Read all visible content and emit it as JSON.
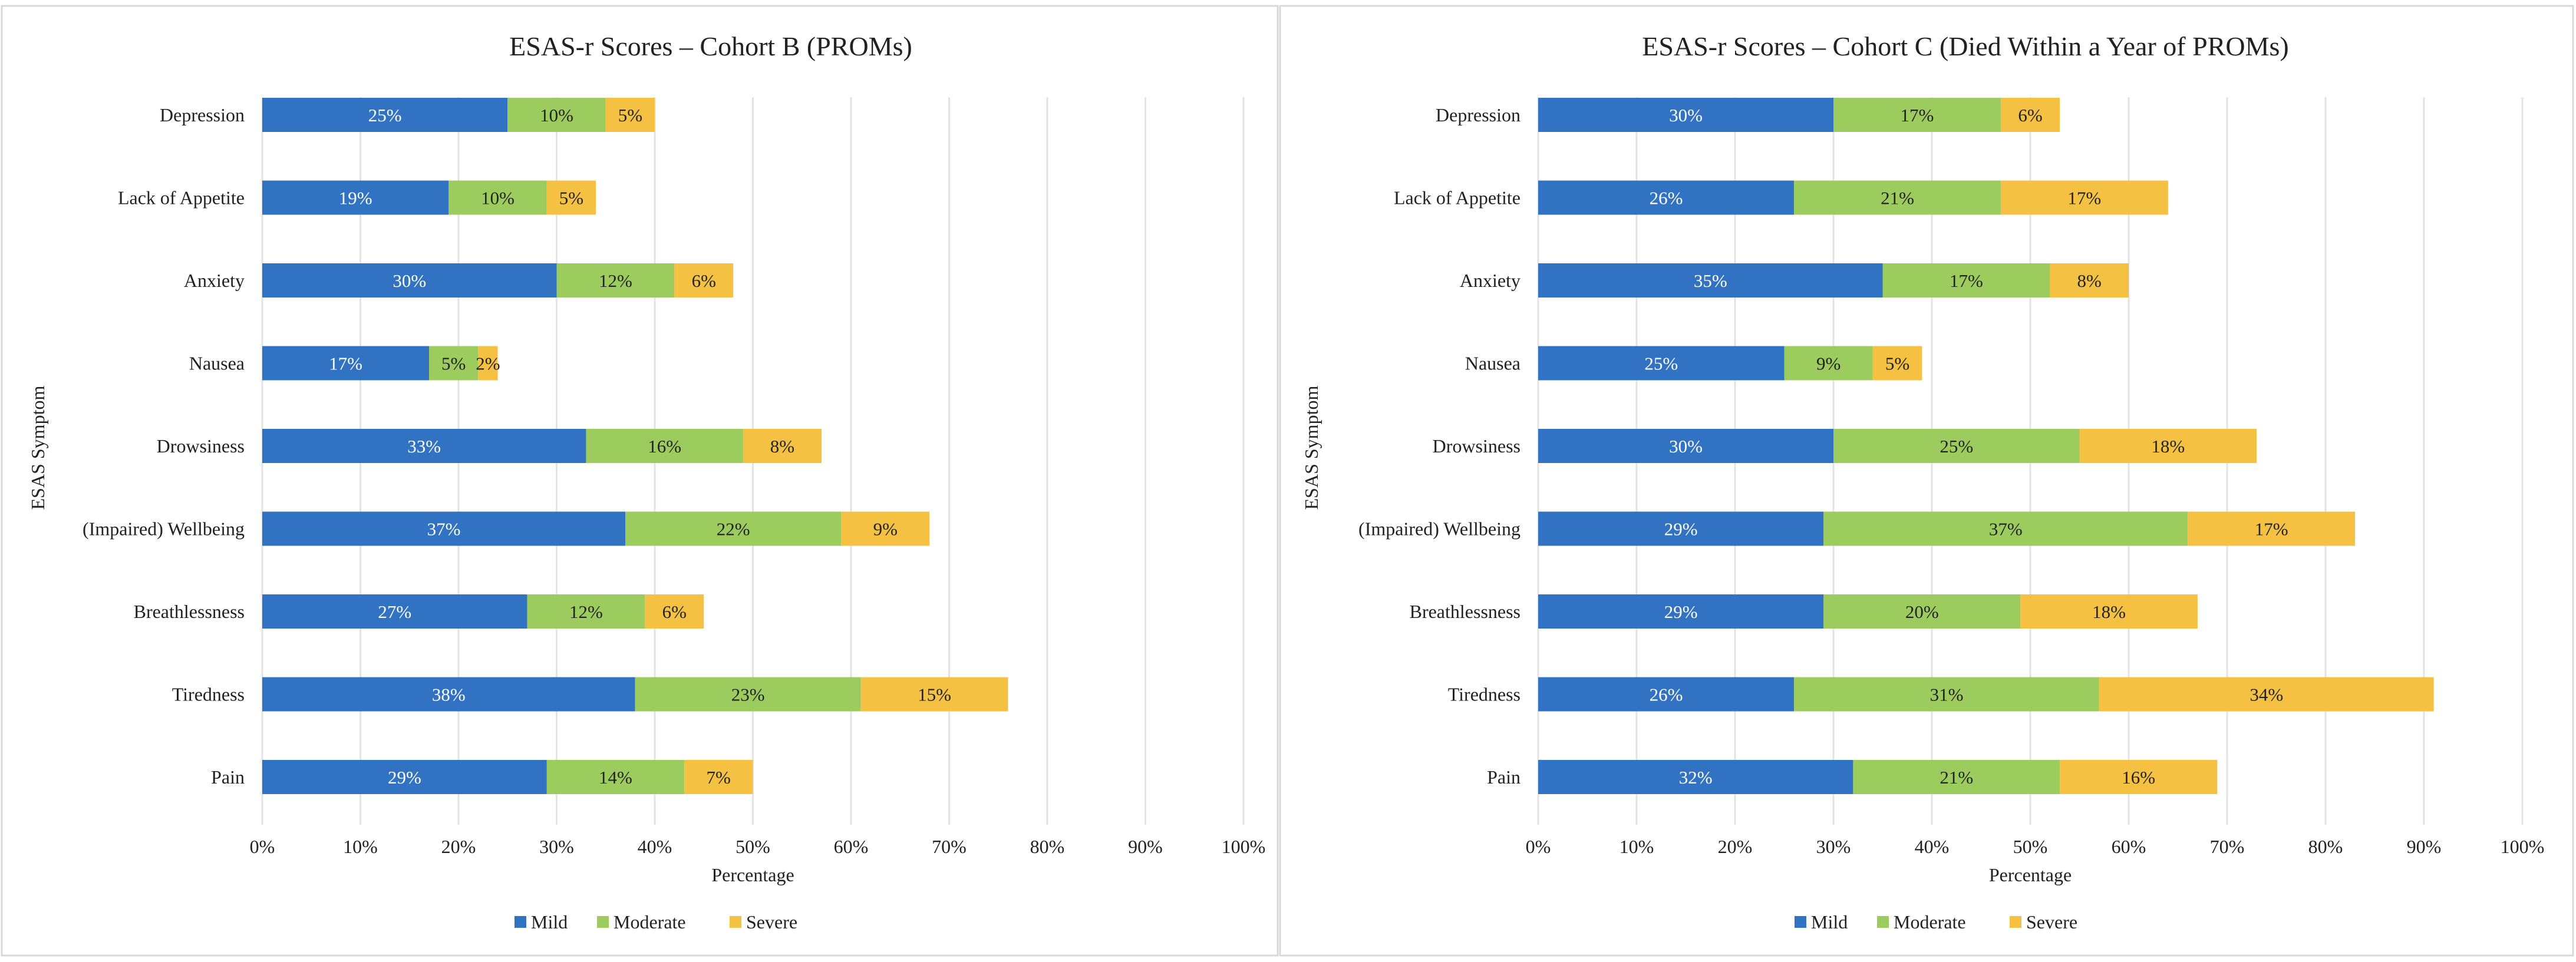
{
  "colors": {
    "Mild": "#3173c2",
    "Moderate": "#9dcc5e",
    "Severe": "#f5c142"
  },
  "chart_data": [
    {
      "type": "bar",
      "orientation": "horizontal",
      "stacked": true,
      "title": "ESAS-r Scores – Cohort B (PROMs)",
      "xlabel": "Percentage",
      "ylabel": "ESAS Symptom",
      "xlim": [
        0,
        100
      ],
      "xticks": [
        "0%",
        "10%",
        "20%",
        "30%",
        "40%",
        "50%",
        "60%",
        "70%",
        "80%",
        "90%",
        "100%"
      ],
      "legend_position": "bottom",
      "categories": [
        "Depression",
        "Lack of Appetite",
        "Anxiety",
        "Nausea",
        "Drowsiness",
        "(Impaired) Wellbeing",
        "Breathlessness",
        "Tiredness",
        "Pain"
      ],
      "series": [
        {
          "name": "Mild",
          "values": [
            25,
            19,
            30,
            17,
            33,
            37,
            27,
            38,
            29
          ],
          "labels": [
            "25%",
            "19%",
            "30%",
            "17%",
            "33%",
            "37%",
            "27%",
            "38%",
            "29%"
          ]
        },
        {
          "name": "Moderate",
          "values": [
            10,
            10,
            12,
            5,
            16,
            22,
            12,
            23,
            14
          ],
          "labels": [
            "10%",
            "10%",
            "12%",
            "5%",
            "16%",
            "22%",
            "12%",
            "23%",
            "14%"
          ]
        },
        {
          "name": "Severe",
          "values": [
            5,
            5,
            6,
            2,
            8,
            9,
            6,
            15,
            7
          ],
          "labels": [
            "5%",
            "5%",
            "6%",
            "2%",
            "8%",
            "9%",
            "6%",
            "15%",
            "7%"
          ]
        }
      ]
    },
    {
      "type": "bar",
      "orientation": "horizontal",
      "stacked": true,
      "title": "ESAS-r Scores – Cohort C (Died Within a Year of PROMs)",
      "xlabel": "Percentage",
      "ylabel": "ESAS Symptom",
      "xlim": [
        0,
        100
      ],
      "xticks": [
        "0%",
        "10%",
        "20%",
        "30%",
        "40%",
        "50%",
        "60%",
        "70%",
        "80%",
        "90%",
        "100%"
      ],
      "legend_position": "bottom",
      "categories": [
        "Depression",
        "Lack of Appetite",
        "Anxiety",
        "Nausea",
        "Drowsiness",
        "(Impaired) Wellbeing",
        "Breathlessness",
        "Tiredness",
        "Pain"
      ],
      "series": [
        {
          "name": "Mild",
          "values": [
            30,
            26,
            35,
            25,
            30,
            29,
            29,
            26,
            32
          ],
          "labels": [
            "30%",
            "26%",
            "35%",
            "25%",
            "30%",
            "29%",
            "29%",
            "26%",
            "32%"
          ]
        },
        {
          "name": "Moderate",
          "values": [
            17,
            21,
            17,
            9,
            25,
            37,
            20,
            31,
            21
          ],
          "labels": [
            "17%",
            "21%",
            "17%",
            "9%",
            "25%",
            "37%",
            "20%",
            "31%",
            "21%"
          ]
        },
        {
          "name": "Severe",
          "values": [
            6,
            17,
            8,
            5,
            18,
            17,
            18,
            34,
            16
          ],
          "labels": [
            "6%",
            "17%",
            "8%",
            "5%",
            "18%",
            "17%",
            "18%",
            "34%",
            "16%"
          ]
        }
      ]
    }
  ]
}
